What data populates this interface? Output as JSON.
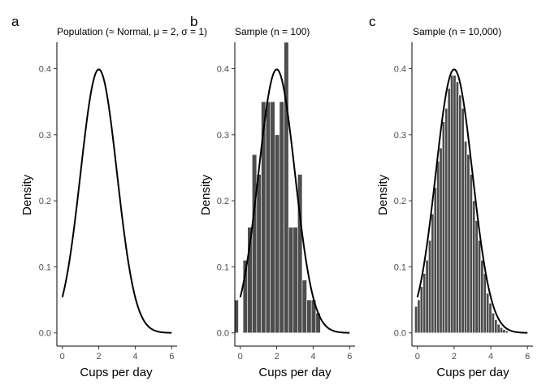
{
  "chart_data": [
    {
      "type": "line",
      "panel_label": "a",
      "title": "Population (≈ Normal, μ = 2, σ = 1)",
      "xlabel": "Cups per day",
      "ylabel": "Density",
      "xlim": [
        -0.3,
        6.3
      ],
      "ylim": [
        -0.02,
        0.44
      ],
      "x_ticks": [
        0,
        2,
        4,
        6
      ],
      "y_ticks": [
        0.0,
        0.1,
        0.2,
        0.3,
        0.4
      ],
      "curve": {
        "distribution": "normal",
        "mean": 2,
        "sd": 1,
        "x_range": [
          0,
          6
        ]
      },
      "grid": false,
      "bar_color": "#4d4d4d",
      "bars": []
    },
    {
      "type": "bar",
      "panel_label": "b",
      "title": "Sample (n = 100)",
      "xlabel": "Cups per day",
      "ylabel": "Density",
      "xlim": [
        -0.3,
        6.3
      ],
      "ylim": [
        -0.02,
        0.44
      ],
      "x_ticks": [
        0,
        2,
        4,
        6
      ],
      "y_ticks": [
        0.0,
        0.1,
        0.2,
        0.3,
        0.4
      ],
      "curve": {
        "distribution": "normal",
        "mean": 2,
        "sd": 1,
        "x_range": [
          0,
          6
        ]
      },
      "grid": false,
      "bar_color": "#4d4d4d",
      "bars": [
        {
          "x0": -0.3,
          "x1": -0.1,
          "y": 0.05
        },
        {
          "x0": 0.15,
          "x1": 0.4,
          "y": 0.11
        },
        {
          "x0": 0.4,
          "x1": 0.65,
          "y": 0.16
        },
        {
          "x0": 0.65,
          "x1": 0.9,
          "y": 0.27
        },
        {
          "x0": 0.9,
          "x1": 1.15,
          "y": 0.24
        },
        {
          "x0": 1.15,
          "x1": 1.4,
          "y": 0.35
        },
        {
          "x0": 1.4,
          "x1": 1.65,
          "y": 0.35
        },
        {
          "x0": 1.65,
          "x1": 1.9,
          "y": 0.35
        },
        {
          "x0": 1.9,
          "x1": 2.15,
          "y": 0.3
        },
        {
          "x0": 2.15,
          "x1": 2.4,
          "y": 0.35
        },
        {
          "x0": 2.4,
          "x1": 2.65,
          "y": 0.44
        },
        {
          "x0": 2.65,
          "x1": 2.9,
          "y": 0.16
        },
        {
          "x0": 2.9,
          "x1": 3.15,
          "y": 0.16
        },
        {
          "x0": 3.15,
          "x1": 3.4,
          "y": 0.24
        },
        {
          "x0": 3.4,
          "x1": 3.65,
          "y": 0.08
        },
        {
          "x0": 3.65,
          "x1": 3.9,
          "y": 0.05
        },
        {
          "x0": 3.9,
          "x1": 4.15,
          "y": 0.05
        },
        {
          "x0": 4.15,
          "x1": 4.4,
          "y": 0.03
        }
      ]
    },
    {
      "type": "bar",
      "panel_label": "c",
      "title": "Sample (n = 10,000)",
      "xlabel": "Cups per day",
      "ylabel": "Density",
      "xlim": [
        -0.3,
        6.3
      ],
      "ylim": [
        -0.02,
        0.44
      ],
      "x_ticks": [
        0,
        2,
        4,
        6
      ],
      "y_ticks": [
        0.0,
        0.1,
        0.2,
        0.3,
        0.4
      ],
      "curve": {
        "distribution": "normal",
        "mean": 2,
        "sd": 1,
        "x_range": [
          0,
          6
        ]
      },
      "grid": false,
      "bar_color": "#4d4d4d",
      "bars": [
        {
          "x0": -0.15,
          "x1": 0.0,
          "y": 0.04
        },
        {
          "x0": 0.0,
          "x1": 0.15,
          "y": 0.05
        },
        {
          "x0": 0.15,
          "x1": 0.3,
          "y": 0.07
        },
        {
          "x0": 0.3,
          "x1": 0.45,
          "y": 0.09
        },
        {
          "x0": 0.45,
          "x1": 0.6,
          "y": 0.11
        },
        {
          "x0": 0.6,
          "x1": 0.75,
          "y": 0.14
        },
        {
          "x0": 0.75,
          "x1": 0.9,
          "y": 0.18
        },
        {
          "x0": 0.9,
          "x1": 1.05,
          "y": 0.22
        },
        {
          "x0": 1.05,
          "x1": 1.2,
          "y": 0.26
        },
        {
          "x0": 1.2,
          "x1": 1.35,
          "y": 0.28
        },
        {
          "x0": 1.35,
          "x1": 1.5,
          "y": 0.32
        },
        {
          "x0": 1.5,
          "x1": 1.65,
          "y": 0.34
        },
        {
          "x0": 1.65,
          "x1": 1.8,
          "y": 0.37
        },
        {
          "x0": 1.8,
          "x1": 1.95,
          "y": 0.39
        },
        {
          "x0": 1.95,
          "x1": 2.1,
          "y": 0.39
        },
        {
          "x0": 2.1,
          "x1": 2.25,
          "y": 0.38
        },
        {
          "x0": 2.25,
          "x1": 2.4,
          "y": 0.36
        },
        {
          "x0": 2.4,
          "x1": 2.55,
          "y": 0.34
        },
        {
          "x0": 2.55,
          "x1": 2.7,
          "y": 0.29
        },
        {
          "x0": 2.7,
          "x1": 2.85,
          "y": 0.27
        },
        {
          "x0": 2.85,
          "x1": 3.0,
          "y": 0.24
        },
        {
          "x0": 3.0,
          "x1": 3.15,
          "y": 0.2
        },
        {
          "x0": 3.15,
          "x1": 3.3,
          "y": 0.17
        },
        {
          "x0": 3.3,
          "x1": 3.45,
          "y": 0.14
        },
        {
          "x0": 3.45,
          "x1": 3.6,
          "y": 0.11
        },
        {
          "x0": 3.6,
          "x1": 3.75,
          "y": 0.09
        },
        {
          "x0": 3.75,
          "x1": 3.9,
          "y": 0.06
        },
        {
          "x0": 3.9,
          "x1": 4.05,
          "y": 0.045
        },
        {
          "x0": 4.05,
          "x1": 4.2,
          "y": 0.03
        },
        {
          "x0": 4.2,
          "x1": 4.35,
          "y": 0.02
        },
        {
          "x0": 4.35,
          "x1": 4.5,
          "y": 0.013
        },
        {
          "x0": 4.5,
          "x1": 4.65,
          "y": 0.008
        },
        {
          "x0": 4.65,
          "x1": 4.8,
          "y": 0.005
        },
        {
          "x0": 4.8,
          "x1": 4.95,
          "y": 0.003
        }
      ]
    }
  ]
}
